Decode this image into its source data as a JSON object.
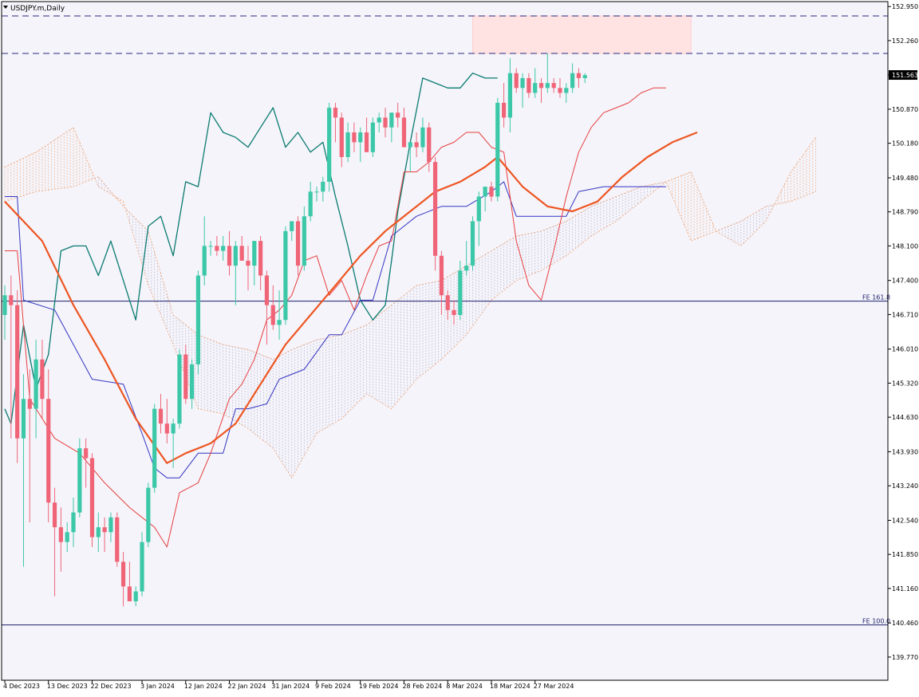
{
  "window": {
    "title": "USDJPY.m,Daily"
  },
  "colors": {
    "background": "#f4f4fa",
    "bull": "#3cc8a8",
    "bear": "#f06478",
    "tenkan": "#e83f3f",
    "kijun": "#3434c4",
    "chikou": "#0a7a70",
    "ma": "#ee5522",
    "cloud_bull": "#f0a070",
    "cloud_bear": "#b0a8c8",
    "fe_line": "#1c1c6c",
    "dashed_level": "#2a2a80",
    "zone_fill": "#ffe2e2",
    "price_tag_bg": "#1a1a6e",
    "current_tag_bg": "#000000"
  },
  "chart_data": {
    "type": "candlestick",
    "symbol": "USDJPY.m",
    "timeframe": "Daily",
    "ylim": [
      139.3,
      153.05
    ],
    "y_ticks": [
      "152.950",
      "152.260",
      "151.563",
      "150.870",
      "150.180",
      "149.480",
      "148.790",
      "148.100",
      "147.400",
      "146.710",
      "146.010",
      "145.320",
      "144.630",
      "143.930",
      "143.240",
      "142.540",
      "141.850",
      "141.160",
      "140.460",
      "139.770"
    ],
    "y_tick_values": [
      152.95,
      152.26,
      151.563,
      150.87,
      150.18,
      149.48,
      148.79,
      148.1,
      147.4,
      146.71,
      146.01,
      145.32,
      144.63,
      143.93,
      143.24,
      142.54,
      141.85,
      141.16,
      140.46,
      139.77
    ],
    "x_labels": [
      "4 Dec 2023",
      "13 Dec 2023",
      "22 Dec 2023",
      "3 Jan 2024",
      "12 Jan 2024",
      "22 Jan 2024",
      "31 Jan 2024",
      "9 Feb 2024",
      "19 Feb 2024",
      "28 Feb 2024",
      "8 Mar 2024",
      "18 Mar 2024",
      "27 Mar 2024"
    ],
    "x_label_index": [
      0,
      7,
      14,
      22,
      29,
      36,
      43,
      50,
      57,
      64,
      71,
      78,
      85
    ],
    "candles": [
      [
        146.7,
        147.3,
        146.2,
        147.1
      ],
      [
        147.1,
        147.5,
        144.2,
        146.9
      ],
      [
        146.9,
        147.2,
        143.7,
        144.2
      ],
      [
        144.2,
        145.5,
        141.6,
        145.0
      ],
      [
        145.0,
        145.6,
        142.5,
        144.8
      ],
      [
        144.8,
        146.2,
        144.2,
        145.8
      ],
      [
        145.8,
        146.2,
        144.6,
        145.0
      ],
      [
        145.0,
        145.6,
        142.5,
        142.9
      ],
      [
        142.9,
        143.2,
        141.0,
        142.4
      ],
      [
        142.4,
        142.8,
        141.5,
        142.1
      ],
      [
        142.1,
        142.5,
        141.9,
        142.3
      ],
      [
        142.3,
        143.0,
        142.0,
        142.7
      ],
      [
        142.7,
        144.2,
        142.6,
        144.0
      ],
      [
        144.0,
        144.2,
        143.2,
        143.8
      ],
      [
        143.8,
        143.9,
        142.0,
        142.2
      ],
      [
        142.2,
        142.7,
        141.9,
        142.4
      ],
      [
        142.4,
        142.6,
        141.9,
        142.3
      ],
      [
        142.3,
        142.7,
        142.1,
        142.6
      ],
      [
        142.6,
        142.7,
        141.6,
        141.7
      ],
      [
        141.7,
        141.9,
        140.8,
        141.2
      ],
      [
        141.2,
        141.7,
        140.9,
        140.9
      ],
      [
        140.9,
        141.2,
        140.8,
        141.1
      ],
      [
        141.1,
        142.3,
        141.0,
        142.1
      ],
      [
        142.1,
        143.3,
        142.0,
        143.2
      ],
      [
        143.2,
        144.9,
        143.1,
        144.8
      ],
      [
        144.8,
        145.1,
        144.3,
        144.5
      ],
      [
        144.5,
        145.0,
        144.1,
        144.3
      ],
      [
        144.3,
        144.6,
        143.6,
        144.5
      ],
      [
        144.5,
        146.0,
        144.4,
        145.9
      ],
      [
        145.9,
        146.1,
        144.9,
        145.0
      ],
      [
        145.0,
        145.8,
        144.8,
        145.7
      ],
      [
        145.7,
        147.6,
        145.5,
        147.5
      ],
      [
        147.5,
        148.7,
        147.3,
        148.1
      ],
      [
        148.1,
        148.2,
        147.9,
        148.1
      ],
      [
        148.1,
        148.3,
        147.9,
        148.0
      ],
      [
        148.0,
        148.3,
        147.8,
        148.1
      ],
      [
        148.1,
        148.4,
        147.5,
        147.7
      ],
      [
        147.7,
        148.2,
        146.9,
        148.1
      ],
      [
        148.1,
        148.3,
        147.9,
        147.8
      ],
      [
        147.8,
        148.1,
        147.2,
        147.7
      ],
      [
        147.7,
        148.2,
        147.3,
        148.2
      ],
      [
        148.2,
        148.3,
        147.2,
        147.5
      ],
      [
        147.5,
        147.6,
        146.1,
        146.9
      ],
      [
        146.9,
        147.3,
        146.4,
        146.5
      ],
      [
        146.5,
        147.2,
        146.2,
        146.6
      ],
      [
        146.6,
        148.5,
        146.5,
        148.4
      ],
      [
        148.4,
        148.6,
        148.2,
        148.6
      ],
      [
        148.6,
        148.7,
        147.5,
        147.7
      ],
      [
        147.7,
        148.9,
        147.6,
        148.7
      ],
      [
        148.7,
        149.4,
        148.6,
        149.2
      ],
      [
        149.2,
        149.3,
        149.0,
        149.2
      ],
      [
        149.2,
        149.5,
        149.0,
        149.4
      ],
      [
        149.4,
        151.0,
        149.2,
        150.9
      ],
      [
        150.9,
        151.0,
        150.2,
        150.7
      ],
      [
        150.7,
        150.8,
        149.7,
        149.9
      ],
      [
        149.9,
        150.6,
        149.8,
        150.4
      ],
      [
        150.4,
        150.6,
        150.0,
        150.2
      ],
      [
        150.2,
        150.5,
        149.8,
        150.4
      ],
      [
        150.4,
        150.7,
        150.0,
        150.0
      ],
      [
        150.0,
        150.7,
        149.9,
        150.6
      ],
      [
        150.6,
        150.8,
        150.4,
        150.7
      ],
      [
        150.7,
        150.9,
        150.3,
        150.5
      ],
      [
        150.5,
        150.8,
        150.2,
        150.8
      ],
      [
        150.8,
        151.0,
        150.5,
        150.7
      ],
      [
        150.7,
        150.9,
        150.1,
        150.1
      ],
      [
        150.1,
        150.2,
        149.6,
        150.2
      ],
      [
        150.2,
        150.4,
        149.9,
        150.1
      ],
      [
        150.1,
        150.7,
        150.0,
        150.5
      ],
      [
        150.5,
        150.6,
        149.6,
        149.8
      ],
      [
        149.8,
        149.9,
        147.6,
        147.9
      ],
      [
        147.9,
        148.0,
        146.7,
        147.1
      ],
      [
        147.1,
        147.2,
        146.6,
        146.8
      ],
      [
        146.8,
        147.0,
        146.5,
        146.7
      ],
      [
        146.7,
        147.8,
        146.6,
        147.6
      ],
      [
        147.6,
        148.2,
        147.5,
        147.7
      ],
      [
        147.7,
        148.7,
        147.6,
        148.6
      ],
      [
        148.6,
        149.2,
        148.1,
        149.1
      ],
      [
        149.1,
        149.3,
        148.8,
        149.3
      ],
      [
        149.3,
        149.4,
        149.0,
        149.1
      ],
      [
        149.1,
        151.1,
        149.0,
        151.0
      ],
      [
        151.0,
        151.4,
        150.5,
        150.7
      ],
      [
        150.7,
        151.9,
        150.4,
        151.6
      ],
      [
        151.6,
        151.7,
        151.2,
        151.3
      ],
      [
        151.3,
        151.6,
        150.9,
        151.5
      ],
      [
        151.5,
        151.6,
        151.1,
        151.2
      ],
      [
        151.2,
        151.7,
        151.1,
        151.4
      ],
      [
        151.4,
        151.5,
        151.0,
        151.3
      ],
      [
        151.3,
        152.0,
        151.2,
        151.4
      ],
      [
        151.4,
        151.5,
        151.2,
        151.3
      ],
      [
        151.3,
        151.5,
        151.1,
        151.2
      ],
      [
        151.2,
        151.4,
        151.0,
        151.3
      ],
      [
        151.3,
        151.8,
        151.2,
        151.6
      ],
      [
        151.6,
        151.7,
        151.3,
        151.5
      ],
      [
        151.5,
        151.6,
        151.4,
        151.56
      ]
    ],
    "levels": [
      {
        "label": "152.760",
        "value": 152.76,
        "style": "dashed"
      },
      {
        "label": "152.000",
        "value": 152.0,
        "style": "dashed"
      }
    ],
    "fibonacci": [
      {
        "label": "FE 161.8",
        "value": 146.98
      },
      {
        "label": "FE 100.0",
        "value": 140.42
      }
    ],
    "current_price": "151.563",
    "current_price_value": 151.563,
    "zone": {
      "index_from": 75,
      "index_to": 110,
      "from": 152.0,
      "to": 152.76
    },
    "ma": [
      [
        0,
        149.0
      ],
      [
        6,
        148.2
      ],
      [
        11,
        146.9
      ],
      [
        16,
        145.8
      ],
      [
        21,
        144.6
      ],
      [
        26,
        143.7
      ],
      [
        29,
        143.9
      ],
      [
        33,
        144.1
      ],
      [
        37,
        144.5
      ],
      [
        41,
        145.3
      ],
      [
        45,
        146.1
      ],
      [
        49,
        146.7
      ],
      [
        53,
        147.3
      ],
      [
        57,
        147.9
      ],
      [
        61,
        148.4
      ],
      [
        65,
        148.8
      ],
      [
        69,
        149.2
      ],
      [
        73,
        149.4
      ],
      [
        77,
        149.7
      ],
      [
        79,
        149.9
      ],
      [
        83,
        149.3
      ],
      [
        87,
        148.9
      ],
      [
        91,
        148.8
      ],
      [
        95,
        149.0
      ],
      [
        99,
        149.5
      ],
      [
        103,
        149.9
      ],
      [
        107,
        150.2
      ],
      [
        111,
        150.4
      ]
    ],
    "tenkan": [
      [
        0,
        148.0
      ],
      [
        2,
        148.0
      ],
      [
        4,
        145.0
      ],
      [
        8,
        144.2
      ],
      [
        12,
        143.9
      ],
      [
        16,
        143.3
      ],
      [
        20,
        142.8
      ],
      [
        22,
        142.6
      ],
      [
        24,
        142.4
      ],
      [
        26,
        142.0
      ],
      [
        28,
        143.1
      ],
      [
        31,
        143.3
      ],
      [
        33,
        143.9
      ],
      [
        36,
        145.0
      ],
      [
        38,
        145.3
      ],
      [
        40,
        145.8
      ],
      [
        42,
        146.6
      ],
      [
        44,
        146.8
      ],
      [
        46,
        147.1
      ],
      [
        48,
        147.8
      ],
      [
        50,
        147.9
      ],
      [
        52,
        147.1
      ],
      [
        54,
        147.4
      ],
      [
        56,
        146.8
      ],
      [
        58,
        147.5
      ],
      [
        60,
        148.1
      ],
      [
        62,
        148.2
      ],
      [
        64,
        149.6
      ],
      [
        66,
        149.6
      ],
      [
        68,
        149.8
      ],
      [
        70,
        150.1
      ],
      [
        72,
        150.2
      ],
      [
        74,
        150.4
      ],
      [
        76,
        150.4
      ],
      [
        78,
        150.1
      ],
      [
        80,
        150.0
      ],
      [
        82,
        148.2
      ],
      [
        84,
        147.3
      ],
      [
        86,
        147.0
      ],
      [
        88,
        148.0
      ],
      [
        90,
        149.1
      ],
      [
        92,
        150.0
      ],
      [
        94,
        150.5
      ],
      [
        96,
        150.8
      ],
      [
        98,
        150.9
      ],
      [
        100,
        151.0
      ],
      [
        102,
        151.2
      ],
      [
        104,
        151.3
      ],
      [
        106,
        151.3
      ]
    ],
    "kijun": [
      [
        0,
        149.1
      ],
      [
        2,
        149.1
      ],
      [
        3,
        147.0
      ],
      [
        8,
        146.8
      ],
      [
        14,
        145.4
      ],
      [
        19,
        145.3
      ],
      [
        22,
        144.3
      ],
      [
        24,
        143.6
      ],
      [
        26,
        143.4
      ],
      [
        28,
        143.4
      ],
      [
        31,
        143.9
      ],
      [
        33,
        143.9
      ],
      [
        35,
        143.9
      ],
      [
        37,
        144.8
      ],
      [
        39,
        144.8
      ],
      [
        42,
        144.9
      ],
      [
        44,
        145.4
      ],
      [
        48,
        145.6
      ],
      [
        52,
        146.3
      ],
      [
        54,
        146.3
      ],
      [
        57,
        147.0
      ],
      [
        59,
        147.0
      ],
      [
        62,
        148.3
      ],
      [
        66,
        148.7
      ],
      [
        70,
        148.9
      ],
      [
        74,
        148.9
      ],
      [
        78,
        149.2
      ],
      [
        80,
        149.4
      ],
      [
        82,
        148.7
      ],
      [
        86,
        148.7
      ],
      [
        90,
        148.7
      ],
      [
        92,
        149.2
      ],
      [
        96,
        149.3
      ],
      [
        100,
        149.3
      ],
      [
        106,
        149.3
      ]
    ],
    "chikou": [
      [
        0,
        144.8
      ],
      [
        1,
        144.5
      ],
      [
        3,
        146.5
      ],
      [
        5,
        145.2
      ],
      [
        7,
        145.9
      ],
      [
        9,
        148.0
      ],
      [
        11,
        148.1
      ],
      [
        13,
        148.1
      ],
      [
        15,
        147.5
      ],
      [
        17,
        148.2
      ],
      [
        19,
        147.4
      ],
      [
        21,
        146.6
      ],
      [
        23,
        148.5
      ],
      [
        25,
        148.7
      ],
      [
        27,
        147.9
      ],
      [
        29,
        149.4
      ],
      [
        31,
        149.3
      ],
      [
        33,
        150.8
      ],
      [
        35,
        150.4
      ],
      [
        37,
        150.3
      ],
      [
        39,
        150.1
      ],
      [
        41,
        150.5
      ],
      [
        43,
        150.9
      ],
      [
        45,
        150.1
      ],
      [
        47,
        150.4
      ],
      [
        49,
        150.0
      ],
      [
        51,
        150.2
      ],
      [
        53,
        149.1
      ],
      [
        55,
        148.1
      ],
      [
        57,
        147.0
      ],
      [
        59,
        146.6
      ],
      [
        61,
        146.9
      ],
      [
        62,
        147.8
      ],
      [
        63,
        148.8
      ],
      [
        65,
        150.2
      ],
      [
        67,
        151.5
      ],
      [
        69,
        151.4
      ],
      [
        71,
        151.3
      ],
      [
        73,
        151.3
      ],
      [
        75,
        151.6
      ],
      [
        77,
        151.5
      ],
      [
        79,
        151.5
      ]
    ],
    "cloud_a": [
      [
        0,
        149.7
      ],
      [
        5,
        150.0
      ],
      [
        11,
        150.5
      ],
      [
        15,
        149.3
      ],
      [
        19,
        149.0
      ],
      [
        23,
        147.3
      ],
      [
        27,
        146.1
      ],
      [
        31,
        144.8
      ],
      [
        35,
        144.7
      ],
      [
        39,
        144.4
      ],
      [
        43,
        144.0
      ],
      [
        46,
        143.4
      ],
      [
        50,
        144.3
      ],
      [
        54,
        144.6
      ],
      [
        58,
        145.1
      ],
      [
        62,
        144.8
      ],
      [
        66,
        145.4
      ],
      [
        70,
        145.8
      ],
      [
        74,
        146.3
      ],
      [
        78,
        147.0
      ],
      [
        82,
        147.4
      ],
      [
        86,
        147.6
      ],
      [
        90,
        147.9
      ],
      [
        94,
        148.3
      ],
      [
        98,
        148.6
      ],
      [
        102,
        149.0
      ],
      [
        106,
        149.4
      ],
      [
        110,
        149.6
      ],
      [
        114,
        148.4
      ],
      [
        118,
        148.1
      ],
      [
        122,
        148.6
      ],
      [
        126,
        149.6
      ],
      [
        130,
        150.3
      ]
    ],
    "cloud_b": [
      [
        0,
        149.0
      ],
      [
        5,
        149.2
      ],
      [
        11,
        149.3
      ],
      [
        15,
        149.5
      ],
      [
        19,
        148.9
      ],
      [
        23,
        148.4
      ],
      [
        27,
        146.7
      ],
      [
        31,
        146.3
      ],
      [
        35,
        146.1
      ],
      [
        39,
        146.0
      ],
      [
        43,
        145.8
      ],
      [
        46,
        146.0
      ],
      [
        50,
        146.2
      ],
      [
        54,
        146.3
      ],
      [
        58,
        146.5
      ],
      [
        62,
        146.9
      ],
      [
        66,
        147.3
      ],
      [
        70,
        147.4
      ],
      [
        74,
        147.7
      ],
      [
        78,
        148.0
      ],
      [
        82,
        148.3
      ],
      [
        86,
        148.4
      ],
      [
        90,
        148.6
      ],
      [
        94,
        148.9
      ],
      [
        98,
        149.1
      ],
      [
        102,
        149.3
      ],
      [
        106,
        149.4
      ],
      [
        110,
        148.2
      ],
      [
        114,
        148.4
      ],
      [
        118,
        148.6
      ],
      [
        122,
        148.9
      ],
      [
        126,
        149.0
      ],
      [
        130,
        149.2
      ]
    ]
  }
}
